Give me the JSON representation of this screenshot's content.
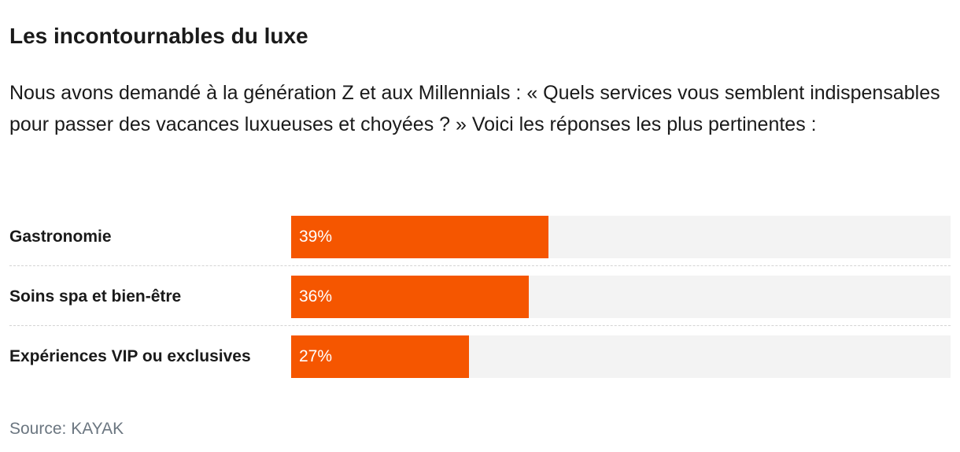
{
  "title": "Les incontournables du luxe",
  "subtitle": "Nous avons demandé à la génération Z et aux Millennials : « Quels services vous semblent indispensables pour passer des vacances luxueuses et choyées ? » Voici les réponses les plus pertinentes :",
  "source": "Source: KAYAK",
  "colors": {
    "bar": "#f55600",
    "track": "#f3f3f3",
    "text": "#1a1a1a",
    "source": "#6b7680"
  },
  "chart_data": {
    "type": "bar",
    "orientation": "horizontal",
    "categories": [
      "Gastronomie",
      "Soins spa et bien-être",
      "Expériences VIP ou exclusives"
    ],
    "values": [
      39,
      36,
      27
    ],
    "value_labels": [
      "39%",
      "36%",
      "27%"
    ],
    "xlim": [
      0,
      100
    ],
    "grid": false
  }
}
